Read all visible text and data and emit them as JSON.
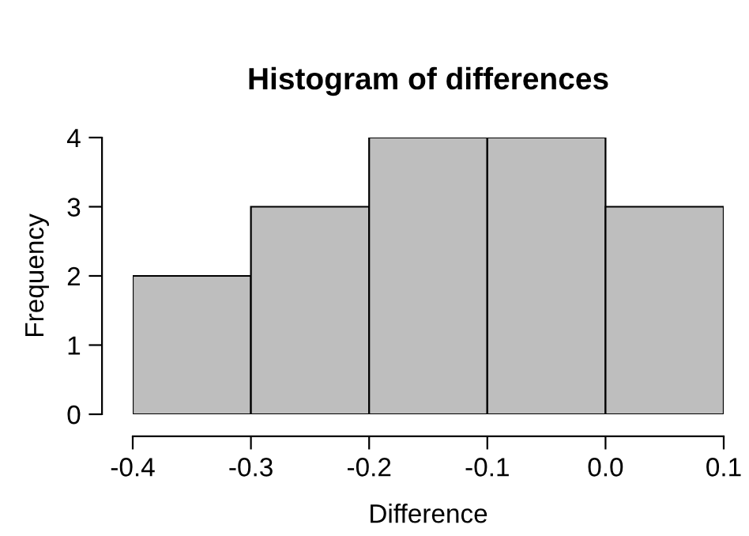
{
  "chart_data": {
    "type": "histogram",
    "title": "Histogram of differences",
    "xlabel": "Difference",
    "ylabel": "Frequency",
    "bins": [
      -0.4,
      -0.3,
      -0.2,
      -0.1,
      0.0,
      0.1
    ],
    "values": [
      2,
      3,
      4,
      4,
      3
    ],
    "color": "#bebebe",
    "xlim": [
      -0.4,
      0.1
    ],
    "ylim": [
      0,
      4
    ],
    "xticks": [
      -0.4,
      -0.3,
      -0.2,
      -0.1,
      {
        "value": 0.0,
        "label": "0.0"
      },
      0.1
    ],
    "yticks": [
      0,
      1,
      2,
      3,
      4
    ],
    "grid": false,
    "legend": false
  }
}
